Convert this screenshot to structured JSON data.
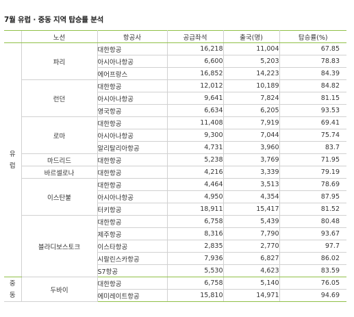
{
  "title": "7월 유럽 · 중동 지역 탑승률 분석",
  "headers": {
    "route": "노선",
    "airline": "항공사",
    "seats": "공급좌석",
    "departures": "출국(명)",
    "rate": "탑승률(%)"
  },
  "regions": {
    "europe": [
      "유",
      "럽"
    ],
    "middle_east": [
      "중",
      "동"
    ]
  },
  "routes": [
    {
      "name": "파리",
      "rows": [
        {
          "airline": "대한항공",
          "seats": "16,218",
          "departures": "11,004",
          "rate": "67.85"
        },
        {
          "airline": "아시아나항공",
          "seats": "6,600",
          "departures": "5,203",
          "rate": "78.83"
        },
        {
          "airline": "에어프랑스",
          "seats": "16,852",
          "departures": "14,223",
          "rate": "84.39"
        }
      ]
    },
    {
      "name": "런던",
      "rows": [
        {
          "airline": "대한항공",
          "seats": "12,012",
          "departures": "10,189",
          "rate": "84.82"
        },
        {
          "airline": "아시아나항공",
          "seats": "9,641",
          "departures": "7,824",
          "rate": "81.15"
        },
        {
          "airline": "영국항공",
          "seats": "6,634",
          "departures": "6,205",
          "rate": "93.53"
        }
      ]
    },
    {
      "name": "로마",
      "rows": [
        {
          "airline": "대한항공",
          "seats": "11,408",
          "departures": "7,919",
          "rate": "69.41"
        },
        {
          "airline": "아시아나항공",
          "seats": "9,300",
          "departures": "7,044",
          "rate": "75.74"
        },
        {
          "airline": "알리탈리아항공",
          "seats": "4,731",
          "departures": "3,960",
          "rate": "83.7"
        }
      ]
    },
    {
      "name": "마드리드",
      "rows": [
        {
          "airline": "대한항공",
          "seats": "5,238",
          "departures": "3,769",
          "rate": "71.95"
        }
      ]
    },
    {
      "name": "바르셀로나",
      "rows": [
        {
          "airline": "대한항공",
          "seats": "4,216",
          "departures": "3,339",
          "rate": "79.19"
        }
      ]
    },
    {
      "name": "이스탄불",
      "rows": [
        {
          "airline": "대한항공",
          "seats": "4,464",
          "departures": "3,513",
          "rate": "78.69"
        },
        {
          "airline": "아시아나항공",
          "seats": "4,950",
          "departures": "4,354",
          "rate": "87.95"
        },
        {
          "airline": "터키항공",
          "seats": "18,911",
          "departures": "15,417",
          "rate": "81.52"
        }
      ]
    },
    {
      "name": "블라디보스토크",
      "rows": [
        {
          "airline": "대한항공",
          "seats": "6,758",
          "departures": "5,439",
          "rate": "80.48"
        },
        {
          "airline": "제주항공",
          "seats": "8,316",
          "departures": "7,790",
          "rate": "93.67"
        },
        {
          "airline": "이스타항공",
          "seats": "2,835",
          "departures": "2,770",
          "rate": "97.7"
        },
        {
          "airline": "시랄린스카항공",
          "seats": "7,936",
          "departures": "6,827",
          "rate": "86.02"
        },
        {
          "airline": "S7항공",
          "seats": "5,530",
          "departures": "4,623",
          "rate": "83.59"
        }
      ]
    },
    {
      "name": "두바이",
      "rows": [
        {
          "airline": "대한항공",
          "seats": "6,758",
          "departures": "5,140",
          "rate": "76.05"
        },
        {
          "airline": "에미레이트항공",
          "seats": "15,810",
          "departures": "14,971",
          "rate": "94.69"
        }
      ]
    }
  ],
  "colors": {
    "rule_green": "#8fbf45",
    "grid_gray": "#d0d0d0",
    "text": "#333333"
  }
}
